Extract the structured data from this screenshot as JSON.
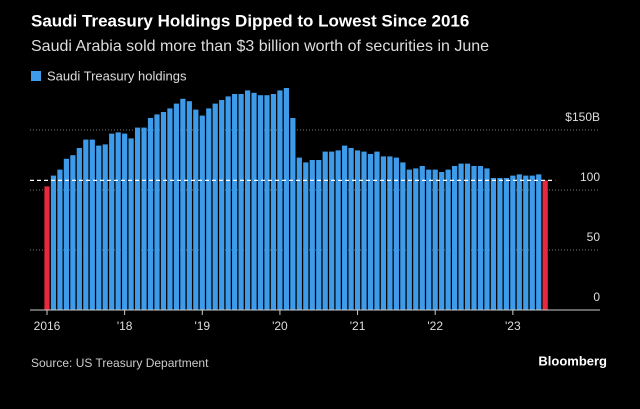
{
  "chart_data": {
    "type": "bar",
    "title": "Saudi Treasury Holdings Dipped to Lowest Since 2016",
    "subtitle": "Saudi Arabia sold more than $3 billion worth of securities in June",
    "source": "Source: US Treasury Department",
    "brand": "Bloomberg",
    "series": [
      {
        "name": "Saudi Treasury holdings",
        "color": "#3d9be9",
        "values": [
          103,
          112,
          117,
          126,
          129,
          135,
          142,
          142,
          137,
          138,
          147,
          148,
          147,
          143,
          152,
          152,
          160,
          163,
          165,
          168,
          172,
          176,
          174,
          167,
          162,
          168,
          172,
          175,
          178,
          180,
          180,
          183,
          181,
          179,
          179,
          180,
          183,
          185,
          160,
          127,
          123,
          125,
          125,
          132,
          132,
          133,
          137,
          135,
          133,
          132,
          130,
          132,
          128,
          128,
          127,
          123,
          117,
          118,
          120,
          117,
          117,
          115,
          117,
          120,
          122,
          122,
          120,
          120,
          118,
          110,
          110,
          110,
          112,
          113,
          112,
          112,
          113,
          108
        ]
      }
    ],
    "highlight_color": "#e8283c",
    "highlight": [
      0,
      77
    ],
    "categories": [
      "2016",
      null,
      null,
      null,
      null,
      null,
      null,
      null,
      null,
      null,
      null,
      null,
      "'18",
      null,
      null,
      null,
      null,
      null,
      null,
      null,
      null,
      null,
      null,
      null,
      "'19",
      null,
      null,
      null,
      null,
      null,
      null,
      null,
      null,
      null,
      null,
      null,
      "'20",
      null,
      null,
      null,
      null,
      null,
      null,
      null,
      null,
      null,
      null,
      null,
      "'21",
      null,
      null,
      null,
      null,
      null,
      null,
      null,
      null,
      null,
      null,
      null,
      "'22",
      null,
      null,
      null,
      null,
      null,
      null,
      null,
      null,
      null,
      null,
      null,
      "'23",
      null,
      null,
      null,
      null,
      null
    ],
    "ylim": [
      0,
      190
    ],
    "yticks": [
      0,
      50,
      100,
      {
        "value": 150,
        "label": "$150B"
      }
    ],
    "grid": true
  }
}
